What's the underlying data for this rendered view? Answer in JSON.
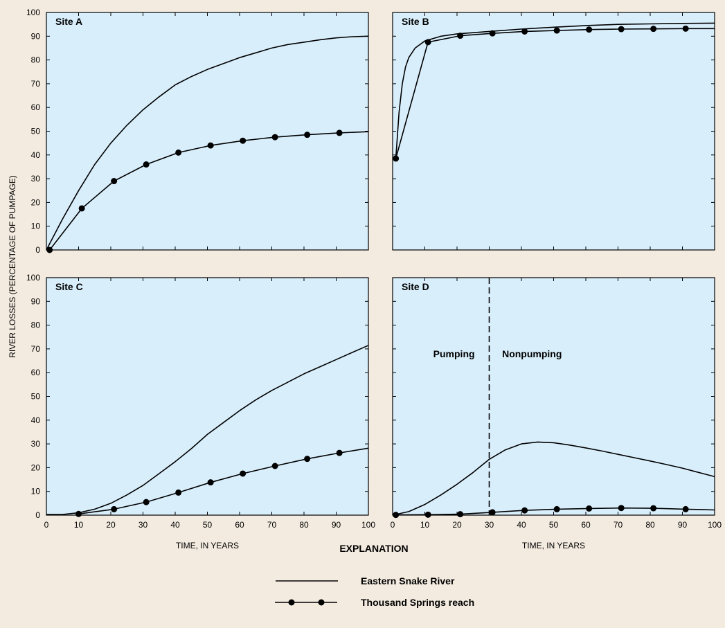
{
  "chart_data": [
    {
      "type": "line",
      "title": "Site A",
      "xlabel": "",
      "ylabel": "RIVER LOSSES (PERCENTAGE OF PUMPAGE)",
      "xlim": [
        0,
        100
      ],
      "ylim": [
        0,
        100
      ],
      "xticks": [
        0,
        10,
        20,
        30,
        40,
        50,
        60,
        70,
        80,
        90,
        100
      ],
      "yticks": [
        0,
        10,
        20,
        30,
        40,
        50,
        60,
        70,
        80,
        90,
        100
      ],
      "series": [
        {
          "name": "Eastern Snake River",
          "markers": false,
          "x": [
            0,
            5,
            10,
            15,
            20,
            25,
            30,
            35,
            40,
            45,
            50,
            55,
            60,
            65,
            70,
            75,
            80,
            85,
            90,
            95,
            100
          ],
          "y": [
            0,
            13,
            25,
            36,
            45,
            52.5,
            59,
            64.5,
            69.5,
            73,
            76,
            78.5,
            81,
            83,
            85,
            86.5,
            87.5,
            88.5,
            89.3,
            89.8,
            90
          ]
        },
        {
          "name": "Thousand Springs reach",
          "markers": true,
          "x": [
            1,
            11,
            21,
            31,
            41,
            51,
            61,
            71,
            81,
            91,
            100
          ],
          "y": [
            0,
            17.5,
            29,
            36,
            41,
            44,
            46,
            47.5,
            48.5,
            49.3,
            49.8
          ]
        }
      ]
    },
    {
      "type": "line",
      "title": "Site B",
      "xlabel": "",
      "ylabel": "",
      "xlim": [
        0,
        100
      ],
      "ylim": [
        0,
        100
      ],
      "xticks": [
        0,
        10,
        20,
        30,
        40,
        50,
        60,
        70,
        80,
        90,
        100
      ],
      "yticks": [
        0,
        10,
        20,
        30,
        40,
        50,
        60,
        70,
        80,
        90,
        100
      ],
      "series": [
        {
          "name": "Eastern Snake River",
          "markers": false,
          "x": [
            1,
            2,
            3,
            4,
            5,
            7,
            10,
            15,
            20,
            30,
            40,
            50,
            60,
            70,
            80,
            90,
            100
          ],
          "y": [
            38.5,
            58,
            70,
            77,
            81,
            85,
            88,
            90,
            91,
            92,
            93,
            93.8,
            94.5,
            95,
            95.2,
            95.4,
            95.5
          ]
        },
        {
          "name": "Thousand Springs reach",
          "markers": true,
          "x": [
            1,
            11,
            21,
            31,
            41,
            51,
            61,
            71,
            81,
            91,
            100
          ],
          "y": [
            38.5,
            87.5,
            90.2,
            91.2,
            92,
            92.4,
            92.8,
            93,
            93.1,
            93.2,
            93.2
          ]
        }
      ]
    },
    {
      "type": "line",
      "title": "Site C",
      "xlabel": "TIME, IN YEARS",
      "ylabel": "",
      "xlim": [
        0,
        100
      ],
      "ylim": [
        0,
        100
      ],
      "xticks": [
        0,
        10,
        20,
        30,
        40,
        50,
        60,
        70,
        80,
        90,
        100
      ],
      "yticks": [
        0,
        10,
        20,
        30,
        40,
        50,
        60,
        70,
        80,
        90,
        100
      ],
      "series": [
        {
          "name": "Eastern Snake River",
          "markers": false,
          "x": [
            0,
            5,
            10,
            15,
            20,
            25,
            30,
            35,
            40,
            45,
            50,
            55,
            60,
            65,
            70,
            75,
            80,
            85,
            90,
            95,
            100
          ],
          "y": [
            0.3,
            0.3,
            1,
            2.5,
            5,
            8.5,
            12.5,
            17.5,
            22.5,
            28,
            34,
            39,
            44,
            48.5,
            52.5,
            56,
            59.5,
            62.5,
            65.5,
            68.5,
            71.5
          ]
        },
        {
          "name": "Thousand Springs reach",
          "markers": true,
          "x": [
            10,
            21,
            31,
            41,
            51,
            61,
            71,
            81,
            91,
            100
          ],
          "y": [
            0.5,
            2.5,
            5.5,
            9.5,
            13.8,
            17.5,
            20.7,
            23.7,
            26.2,
            28.2
          ]
        }
      ]
    },
    {
      "type": "line",
      "title": "Site D",
      "xlabel": "TIME, IN YEARS",
      "ylabel": "",
      "xlim": [
        0,
        100
      ],
      "ylim": [
        0,
        100
      ],
      "xticks": [
        0,
        10,
        20,
        30,
        40,
        50,
        60,
        70,
        80,
        90,
        100
      ],
      "yticks": [
        0,
        10,
        20,
        30,
        40,
        50,
        60,
        70,
        80,
        90,
        100
      ],
      "vline": 30,
      "annotations": [
        "Pumping",
        "Nonpumping"
      ],
      "series": [
        {
          "name": "Eastern Snake River",
          "markers": false,
          "x": [
            0,
            5,
            10,
            15,
            20,
            25,
            30,
            35,
            40,
            45,
            50,
            55,
            60,
            65,
            70,
            75,
            80,
            85,
            90,
            95,
            100
          ],
          "y": [
            0,
            1.5,
            4.5,
            8.5,
            13,
            18,
            23.5,
            27.5,
            30,
            30.8,
            30.5,
            29.5,
            28.3,
            27,
            25.6,
            24.2,
            22.8,
            21.3,
            19.8,
            18,
            16.2
          ]
        },
        {
          "name": "Thousand Springs reach",
          "markers": true,
          "x": [
            1,
            11,
            21,
            31,
            41,
            51,
            61,
            71,
            81,
            91,
            100
          ],
          "y": [
            0.1,
            0.2,
            0.4,
            1.2,
            2,
            2.5,
            2.8,
            3,
            2.9,
            2.5,
            2.2
          ]
        }
      ]
    }
  ],
  "legend": {
    "title": "EXPLANATION",
    "placement": "bottom-center",
    "items": [
      {
        "label": "Eastern Snake River",
        "markers": false
      },
      {
        "label": "Thousand Springs reach",
        "markers": true
      }
    ]
  },
  "colors": {
    "page": "#f3ebe0",
    "plot_fill": "#d8eefb",
    "ink": "#000000"
  }
}
